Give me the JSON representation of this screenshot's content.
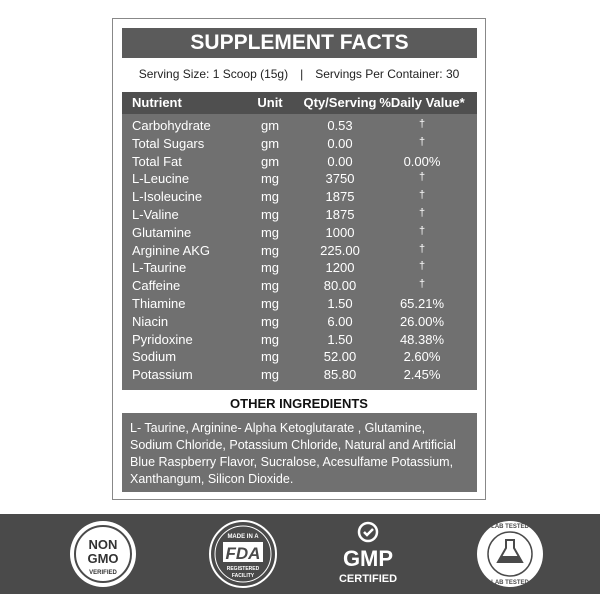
{
  "panel": {
    "title": "SUPPLEMENT FACTS",
    "serving_size": "Serving Size: 1 Scoop (15g)",
    "separator": "|",
    "servings_per_container": "Servings Per Container: 30",
    "table": {
      "header": [
        "Nutrient",
        "Unit",
        "Qty/Serving",
        "%Daily Value*"
      ],
      "rows": [
        [
          "Carbohydrate",
          "gm",
          "0.53",
          "†"
        ],
        [
          "Total Sugars",
          "gm",
          "0.00",
          "†"
        ],
        [
          "Total Fat",
          "gm",
          "0.00",
          "0.00%"
        ],
        [
          "L-Leucine",
          "mg",
          "3750",
          "†"
        ],
        [
          "L-Isoleucine",
          "mg",
          "1875",
          "†"
        ],
        [
          "L-Valine",
          "mg",
          "1875",
          "†"
        ],
        [
          "Glutamine",
          "mg",
          "1000",
          "†"
        ],
        [
          "Arginine AKG",
          "mg",
          "225.00",
          "†"
        ],
        [
          "L-Taurine",
          "mg",
          "1200",
          "†"
        ],
        [
          "Caffeine",
          "mg",
          "80.00",
          "†"
        ],
        [
          "Thiamine",
          "mg",
          "1.50",
          "65.21%"
        ],
        [
          "Niacin",
          "mg",
          "6.00",
          "26.00%"
        ],
        [
          "Pyridoxine",
          "mg",
          "1.50",
          "48.38%"
        ],
        [
          "Sodium",
          "mg",
          "52.00",
          "2.60%"
        ],
        [
          "Potassium",
          "mg",
          "85.80",
          "2.45%"
        ]
      ]
    },
    "other_ingredients_title": "OTHER INGREDIENTS",
    "other_ingredients_lines": [
      "L- Taurine, Arginine- Alpha Ketoglutarate , Glutamine,",
      "Sodium Chloride, Potassium Chloride, Natural and Artificial",
      "Blue Raspberry Flavor, Sucralose, Acesulfame Potassium,",
      "Xanthangum, Silicon Dioxide."
    ]
  },
  "badges": [
    {
      "lines": [
        "NON",
        "GMO",
        "VERIFIED"
      ]
    },
    {
      "lines": [
        "MADE IN A",
        "FDA",
        "REGISTERED",
        "FACILITY"
      ]
    },
    {
      "lines": [
        "GMP",
        "CERTIFIED"
      ]
    },
    {
      "lines": [
        "LAB TESTED",
        "LAB TESTED"
      ]
    }
  ]
}
